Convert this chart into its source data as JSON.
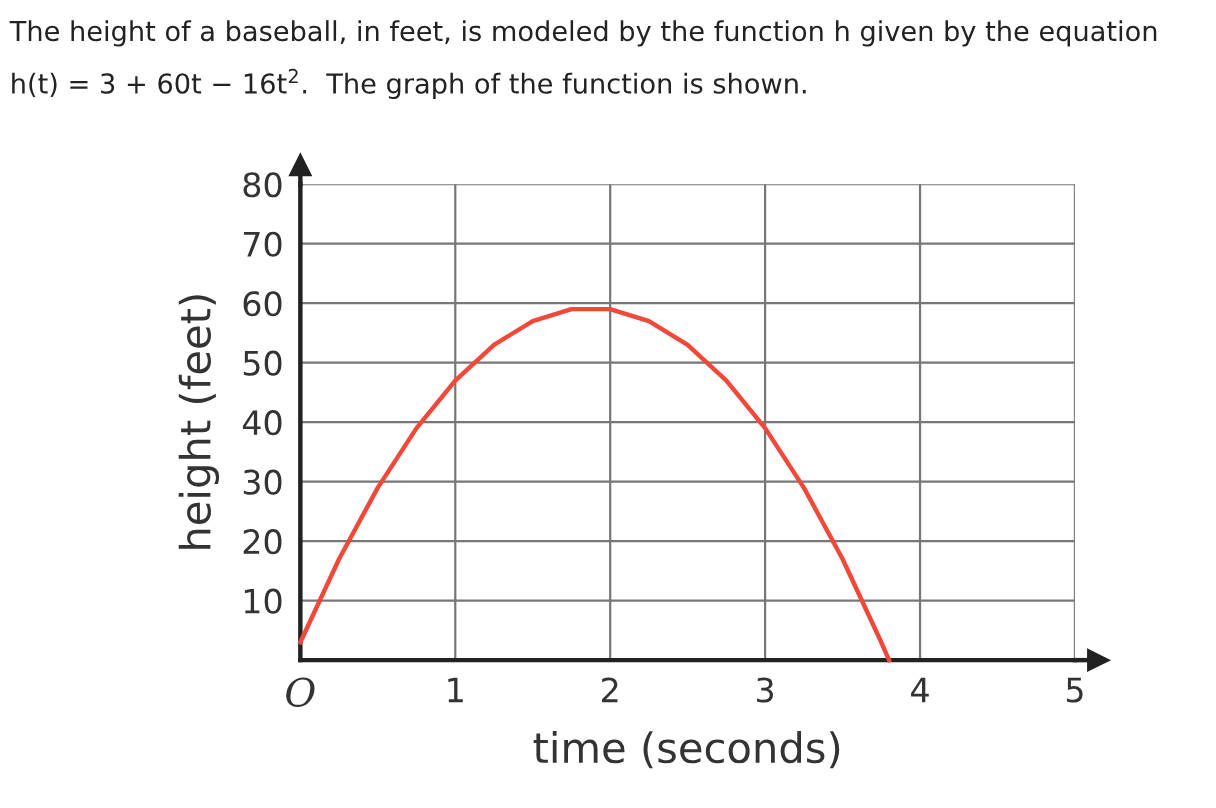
{
  "chart_data": {
    "type": "line",
    "title": "The height of a baseball, in feet, is modeled by the function h given by the equation\nh(t) = 3 + 60t − 16t$^{2}$.  The graph of the function is shown.",
    "xlabel": "time (seconds)",
    "ylabel": "height (feet)",
    "series": [
      {
        "color": "#f0493a",
        "x": [
          0,
          0.25,
          0.5,
          0.75,
          1,
          1.25,
          1.5,
          1.75,
          2,
          2.25,
          2.5,
          2.75,
          3,
          3.25,
          3.5,
          3.75,
          3.8
        ],
        "values": [
          3,
          17,
          29,
          39,
          47,
          53,
          57,
          59,
          59,
          57,
          53,
          47,
          39,
          29,
          17,
          3,
          0
        ]
      }
    ],
    "xlim": [
      0,
      5
    ],
    "ylim": [
      0,
      80
    ],
    "xticks": [
      {
        "value": 0,
        "label": "O"
      },
      1,
      2,
      3,
      4,
      5
    ],
    "yticks": [
      10,
      20,
      30,
      40,
      50,
      60,
      70,
      80
    ],
    "grid": true,
    "marker": "none",
    "line_style": "solid"
  }
}
